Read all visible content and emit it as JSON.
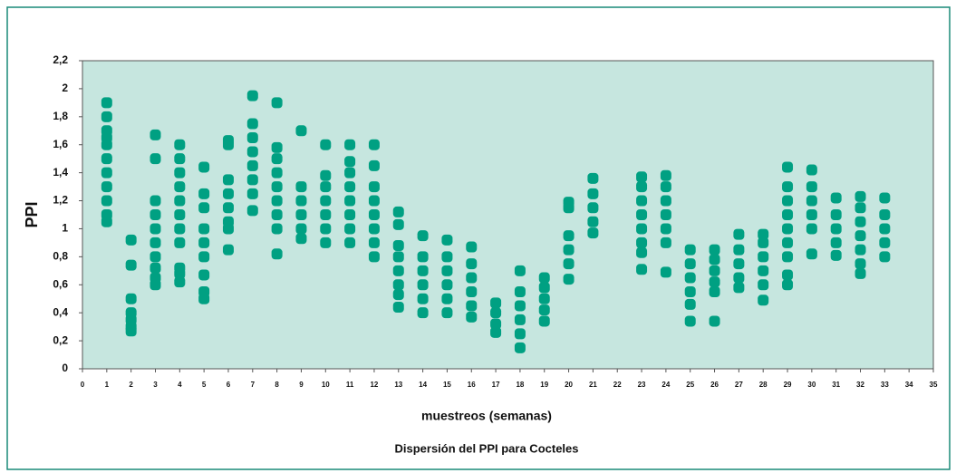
{
  "chart_data": {
    "type": "scatter",
    "title": "Dispersión del PPI para Cocteles",
    "xlabel": "muestreos (semanas)",
    "ylabel": "PPI",
    "color": "#00a082",
    "xlim": [
      0,
      35
    ],
    "xticks": [
      0,
      1,
      2,
      3,
      4,
      5,
      6,
      7,
      8,
      9,
      10,
      11,
      12,
      13,
      14,
      15,
      16,
      17,
      18,
      19,
      20,
      21,
      22,
      23,
      24,
      25,
      26,
      27,
      28,
      29,
      30,
      31,
      32,
      33,
      34,
      35
    ],
    "ylim": [
      0,
      2.2
    ],
    "yticks": [
      0,
      {
        "value": 0.2,
        "label": "0,2"
      },
      {
        "value": 0.4,
        "label": "0,4"
      },
      {
        "value": 0.6,
        "label": "0,6"
      },
      {
        "value": 0.8,
        "label": "0,8"
      },
      1,
      {
        "value": 1.2,
        "label": "1,2"
      },
      {
        "value": 1.4,
        "label": "1,4"
      },
      {
        "value": 1.6,
        "label": "1,6"
      },
      {
        "value": 1.8,
        "label": "1,8"
      },
      2,
      {
        "value": 2.2,
        "label": "2,2"
      }
    ],
    "x": [
      1,
      1,
      1,
      1,
      1,
      1,
      1,
      1,
      1,
      1,
      1,
      2,
      2,
      2,
      2,
      2,
      2,
      2,
      3,
      3,
      3,
      3,
      3,
      3,
      3,
      3,
      3,
      3,
      4,
      4,
      4,
      4,
      4,
      4,
      4,
      4,
      4,
      4,
      4,
      5,
      5,
      5,
      5,
      5,
      5,
      5,
      5,
      5,
      6,
      6,
      6,
      6,
      6,
      6,
      6,
      6,
      7,
      7,
      7,
      7,
      7,
      7,
      7,
      7,
      8,
      8,
      8,
      8,
      8,
      8,
      8,
      8,
      8,
      9,
      9,
      9,
      9,
      9,
      9,
      10,
      10,
      10,
      10,
      10,
      10,
      10,
      11,
      11,
      11,
      11,
      11,
      11,
      11,
      11,
      12,
      12,
      12,
      12,
      12,
      12,
      12,
      12,
      13,
      13,
      13,
      13,
      13,
      13,
      13,
      13,
      14,
      14,
      14,
      14,
      14,
      14,
      15,
      15,
      15,
      15,
      15,
      15,
      16,
      16,
      16,
      16,
      16,
      16,
      17,
      17,
      17,
      17,
      18,
      18,
      18,
      18,
      18,
      18,
      19,
      19,
      19,
      19,
      19,
      20,
      20,
      20,
      20,
      20,
      20,
      21,
      21,
      21,
      21,
      21,
      23,
      23,
      23,
      23,
      23,
      23,
      23,
      23,
      24,
      24,
      24,
      24,
      24,
      24,
      24,
      25,
      25,
      25,
      25,
      25,
      25,
      26,
      26,
      26,
      26,
      26,
      26,
      27,
      27,
      27,
      27,
      27,
      28,
      28,
      28,
      28,
      28,
      28,
      29,
      29,
      29,
      29,
      29,
      29,
      29,
      29,
      29,
      30,
      30,
      30,
      30,
      30,
      30,
      31,
      31,
      31,
      31,
      31,
      32,
      32,
      32,
      32,
      32,
      32,
      32,
      33,
      33,
      33,
      33,
      33
    ],
    "y": [
      1.05,
      1.1,
      1.2,
      1.3,
      1.4,
      1.5,
      1.6,
      1.65,
      1.7,
      1.8,
      1.9,
      0.27,
      0.3,
      0.35,
      0.4,
      0.5,
      0.74,
      0.92,
      0.6,
      0.65,
      0.72,
      0.8,
      0.9,
      1.0,
      1.1,
      1.2,
      1.5,
      1.67,
      0.62,
      0.68,
      0.72,
      0.9,
      1.0,
      1.1,
      1.2,
      1.3,
      1.4,
      1.5,
      1.6,
      0.5,
      0.55,
      0.67,
      0.8,
      0.9,
      1.0,
      1.15,
      1.25,
      1.44,
      0.85,
      1.0,
      1.05,
      1.15,
      1.25,
      1.35,
      1.6,
      1.63,
      1.13,
      1.25,
      1.35,
      1.45,
      1.55,
      1.65,
      1.75,
      1.95,
      0.82,
      1.0,
      1.1,
      1.2,
      1.3,
      1.4,
      1.5,
      1.58,
      1.9,
      0.93,
      1.0,
      1.1,
      1.2,
      1.3,
      1.7,
      0.9,
      1.0,
      1.1,
      1.2,
      1.3,
      1.38,
      1.6,
      0.9,
      1.0,
      1.1,
      1.2,
      1.3,
      1.4,
      1.48,
      1.6,
      0.8,
      0.9,
      1.0,
      1.1,
      1.2,
      1.3,
      1.45,
      1.6,
      0.44,
      0.53,
      0.6,
      0.7,
      0.8,
      0.88,
      1.03,
      1.12,
      0.4,
      0.5,
      0.6,
      0.7,
      0.8,
      0.95,
      0.4,
      0.5,
      0.6,
      0.7,
      0.8,
      0.92,
      0.37,
      0.45,
      0.55,
      0.65,
      0.75,
      0.87,
      0.26,
      0.32,
      0.4,
      0.47,
      0.15,
      0.25,
      0.35,
      0.45,
      0.55,
      0.7,
      0.34,
      0.42,
      0.5,
      0.58,
      0.65,
      0.64,
      0.75,
      0.85,
      0.95,
      1.15,
      1.19,
      0.97,
      1.05,
      1.15,
      1.25,
      1.36,
      0.71,
      0.83,
      0.9,
      1.0,
      1.1,
      1.2,
      1.3,
      1.37,
      0.69,
      0.9,
      1.0,
      1.1,
      1.2,
      1.3,
      1.38,
      0.34,
      0.46,
      0.55,
      0.65,
      0.75,
      0.85,
      0.34,
      0.55,
      0.62,
      0.7,
      0.78,
      0.85,
      0.58,
      0.65,
      0.75,
      0.85,
      0.96,
      0.49,
      0.6,
      0.7,
      0.8,
      0.9,
      0.96,
      0.6,
      0.67,
      0.8,
      0.9,
      1.0,
      1.1,
      1.2,
      1.3,
      1.44,
      0.82,
      1.0,
      1.1,
      1.2,
      1.3,
      1.42,
      0.81,
      0.9,
      1.0,
      1.1,
      1.22,
      0.68,
      0.75,
      0.85,
      0.95,
      1.05,
      1.15,
      1.23,
      0.8,
      0.9,
      1.0,
      1.1,
      1.22
    ]
  }
}
